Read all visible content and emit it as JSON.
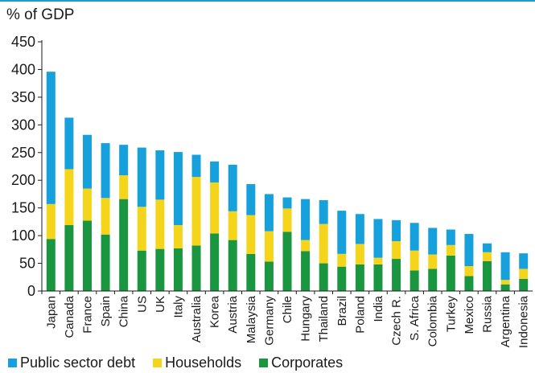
{
  "chart_data": {
    "type": "bar",
    "stacked": true,
    "title": "",
    "ylabel": "% of GDP",
    "xlabel": "",
    "ylim": [
      0,
      450
    ],
    "yticks": [
      0,
      50,
      100,
      150,
      200,
      250,
      300,
      350,
      400,
      450
    ],
    "grid": false,
    "legend_position": "bottom",
    "categories": [
      "Japan",
      "Canada",
      "France",
      "Spain",
      "China",
      "US",
      "UK",
      "Italy",
      "Australia",
      "Korea",
      "Austria",
      "Malaysia",
      "Germany",
      "Chile",
      "Hungary",
      "Thailand",
      "Brazil",
      "Poland",
      "India",
      "Czech R.",
      "S. Africa",
      "Colombia",
      "Turkey",
      "Mexico",
      "Russia",
      "Argentina",
      "Indonesia"
    ],
    "series": [
      {
        "name": "Corporates",
        "color": "#1a9641",
        "values": [
          94,
          119,
          127,
          102,
          166,
          73,
          76,
          77,
          82,
          104,
          92,
          67,
          53,
          107,
          72,
          50,
          44,
          48,
          48,
          58,
          37,
          40,
          64,
          27,
          54,
          12,
          22
        ]
      },
      {
        "name": "Households",
        "color": "#f5d51c",
        "values": [
          63,
          101,
          58,
          66,
          43,
          79,
          89,
          42,
          124,
          92,
          52,
          70,
          55,
          42,
          20,
          71,
          23,
          37,
          12,
          32,
          36,
          26,
          19,
          18,
          16,
          8,
          18
        ]
      },
      {
        "name": "Public sector debt",
        "color": "#16a1dc",
        "values": [
          239,
          93,
          97,
          99,
          55,
          107,
          89,
          132,
          40,
          38,
          84,
          56,
          67,
          20,
          74,
          43,
          78,
          54,
          70,
          38,
          50,
          48,
          28,
          58,
          16,
          50,
          28
        ]
      }
    ],
    "legend_order": [
      "Public sector debt",
      "Households",
      "Corporates"
    ]
  }
}
